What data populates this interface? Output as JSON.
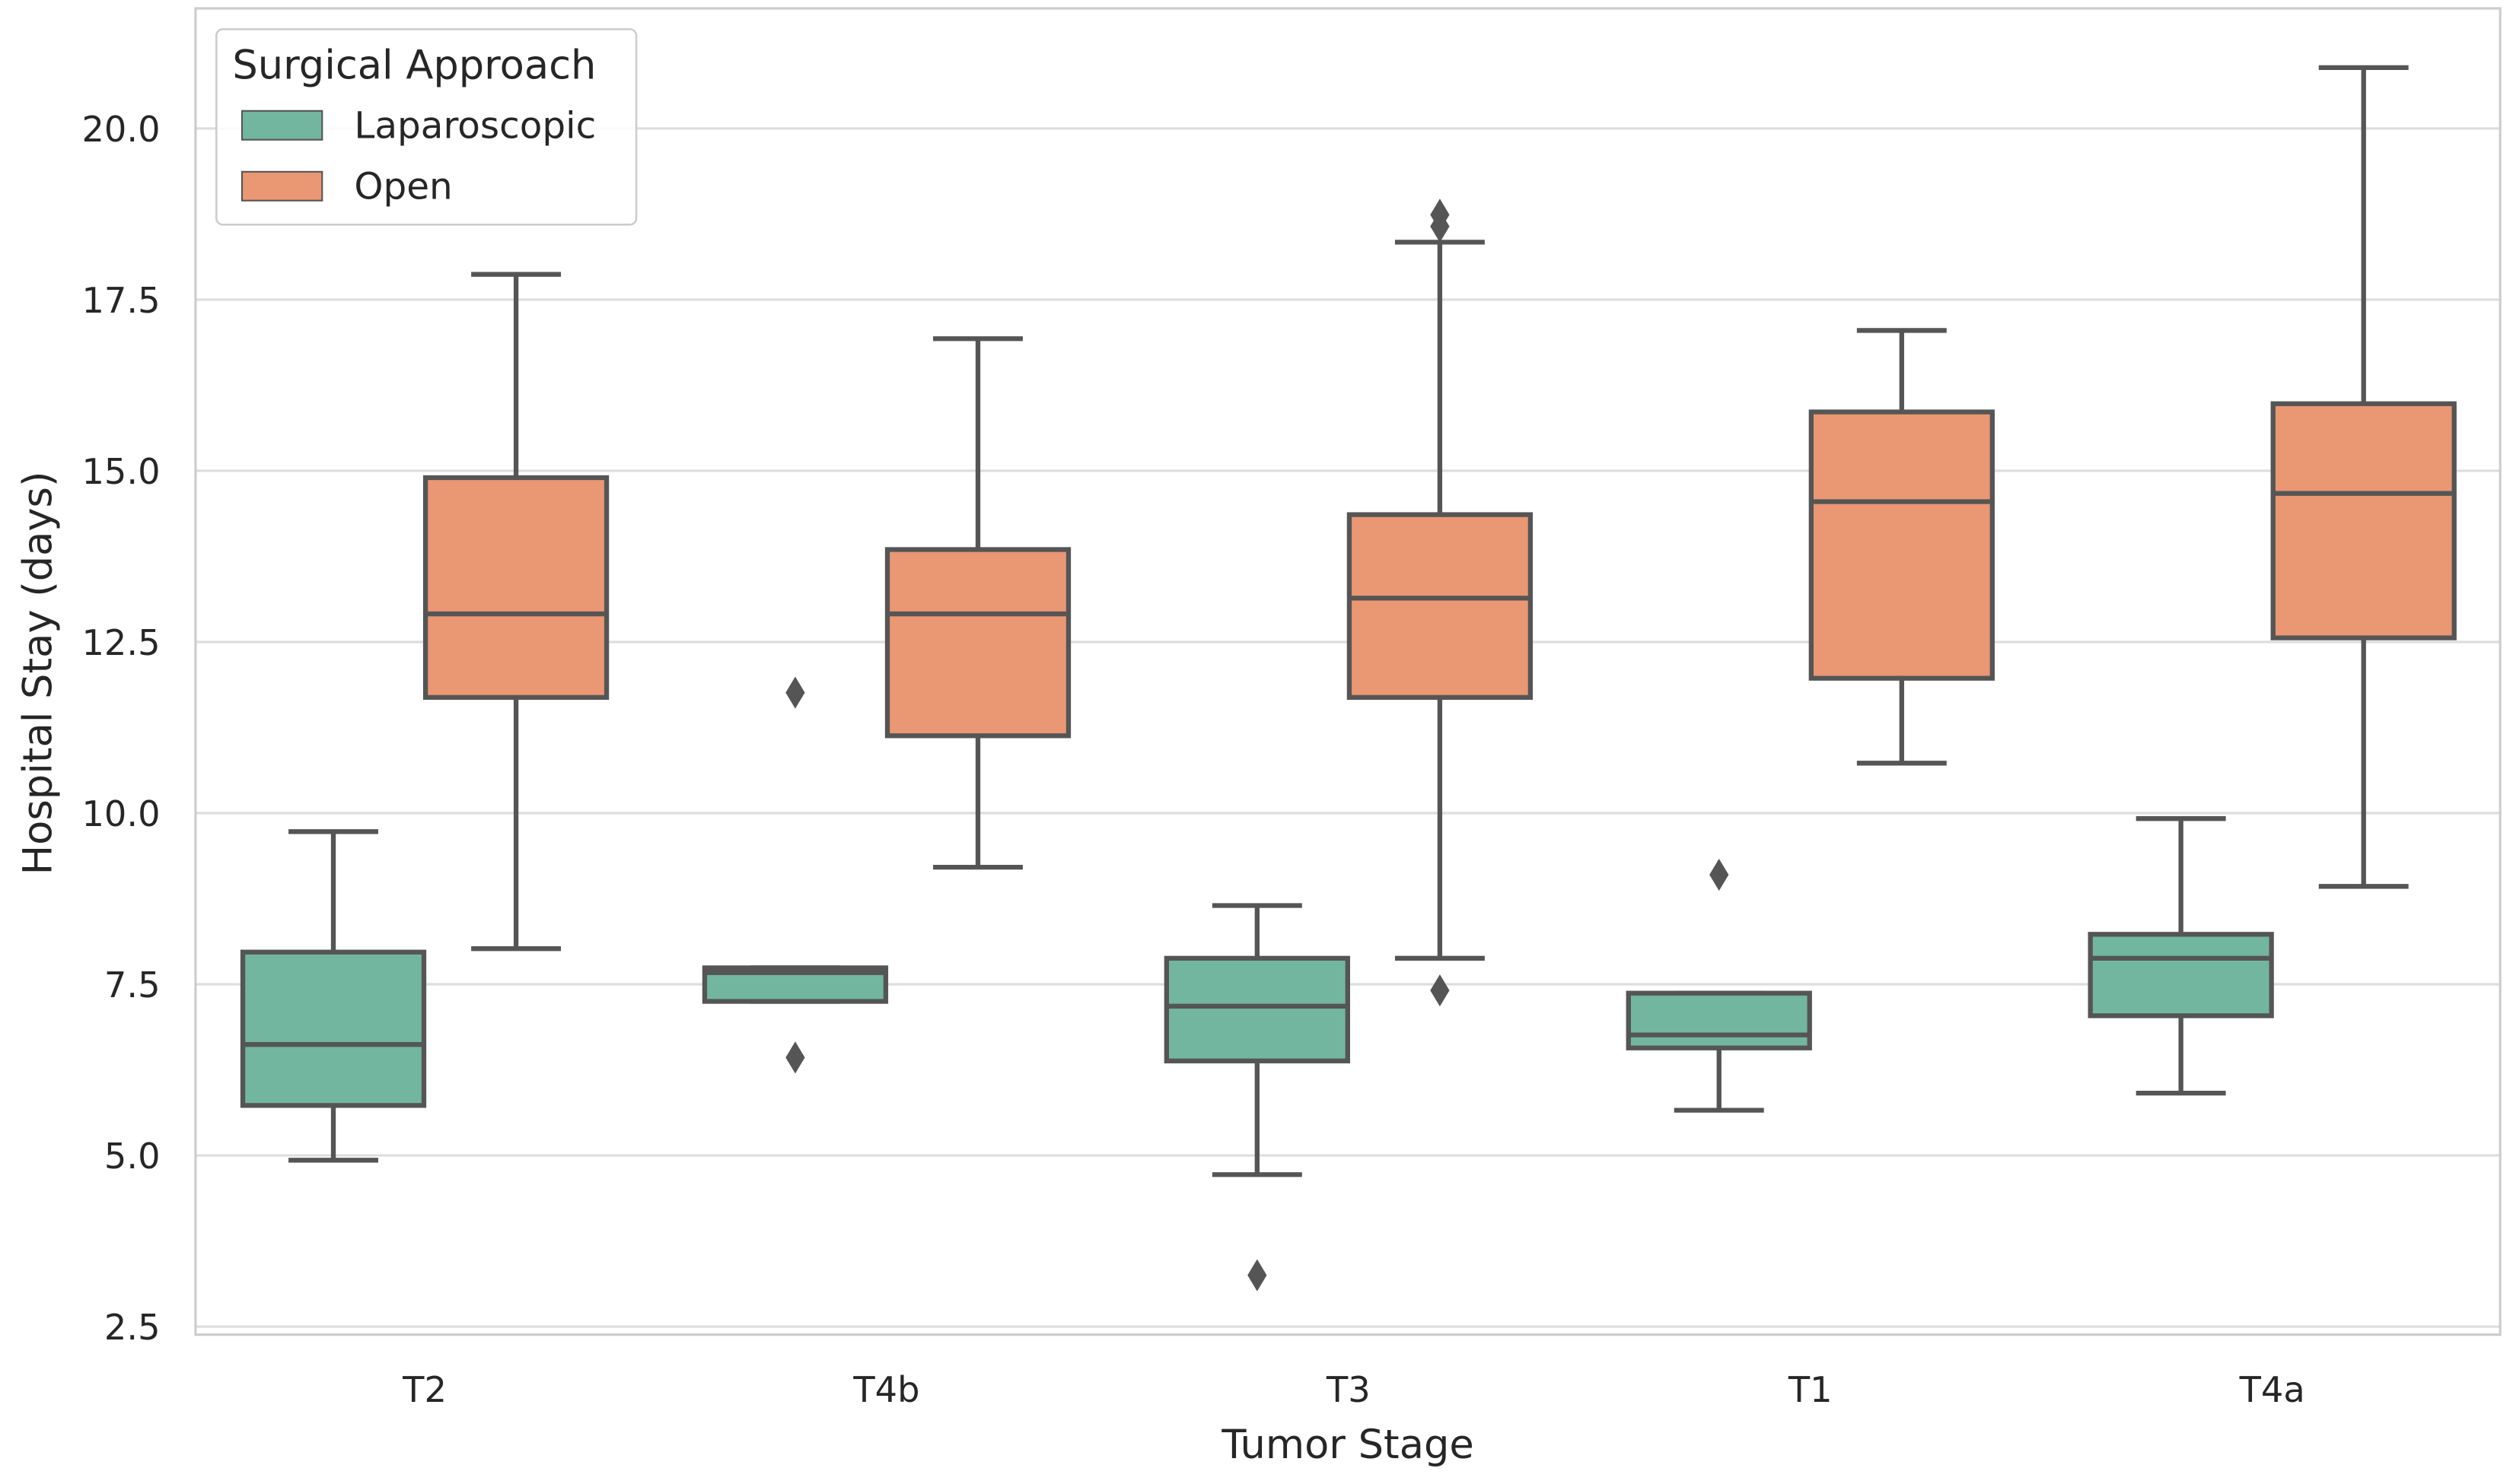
{
  "chart_data": {
    "type": "box",
    "title": "",
    "xlabel": "Tumor Stage",
    "ylabel": "Hospital Stay (days)",
    "ylim": [
      2.3,
      21.5
    ],
    "yticks": [
      2.5,
      5.0,
      7.5,
      10.0,
      12.5,
      15.0,
      17.5,
      20.0
    ],
    "grid": true,
    "categories": [
      "T2",
      "T4b",
      "T3",
      "T1",
      "T4a"
    ],
    "legend": {
      "title": "Surgical Approach",
      "placement": "top-left"
    },
    "series": [
      {
        "name": "Laparoscopic",
        "color": "#72b6a0",
        "boxes": [
          {
            "whislo": 4.93,
            "q1": 5.73,
            "med": 6.62,
            "q3": 7.97,
            "whishi": 9.73,
            "fliers": []
          },
          {
            "whislo": 7.25,
            "q1": 7.25,
            "med": 7.67,
            "q3": 7.74,
            "whishi": 7.74,
            "fliers": [
              11.76,
              6.43
            ]
          },
          {
            "whislo": 4.72,
            "q1": 6.38,
            "med": 7.18,
            "q3": 7.88,
            "whishi": 8.65,
            "fliers": [
              3.25
            ]
          },
          {
            "whislo": 5.66,
            "q1": 6.57,
            "med": 6.76,
            "q3": 7.37,
            "whishi": 7.37,
            "fliers": [
              9.1
            ]
          },
          {
            "whislo": 5.91,
            "q1": 7.04,
            "med": 7.88,
            "q3": 8.23,
            "whishi": 9.92,
            "fliers": []
          }
        ]
      },
      {
        "name": "Open",
        "color": "#ea9773",
        "boxes": [
          {
            "whislo": 8.02,
            "q1": 11.69,
            "med": 12.91,
            "q3": 14.9,
            "whishi": 17.87,
            "fliers": []
          },
          {
            "whislo": 9.21,
            "q1": 11.13,
            "med": 12.91,
            "q3": 13.85,
            "whishi": 16.93,
            "fliers": []
          },
          {
            "whislo": 7.88,
            "q1": 11.69,
            "med": 13.14,
            "q3": 14.36,
            "whishi": 18.34,
            "fliers": [
              18.74,
              18.57,
              7.41
            ]
          },
          {
            "whislo": 10.73,
            "q1": 11.97,
            "med": 14.55,
            "q3": 15.86,
            "whishi": 17.05,
            "fliers": []
          },
          {
            "whislo": 8.93,
            "q1": 12.56,
            "med": 14.67,
            "q3": 15.98,
            "whishi": 20.89,
            "fliers": []
          }
        ]
      }
    ]
  }
}
